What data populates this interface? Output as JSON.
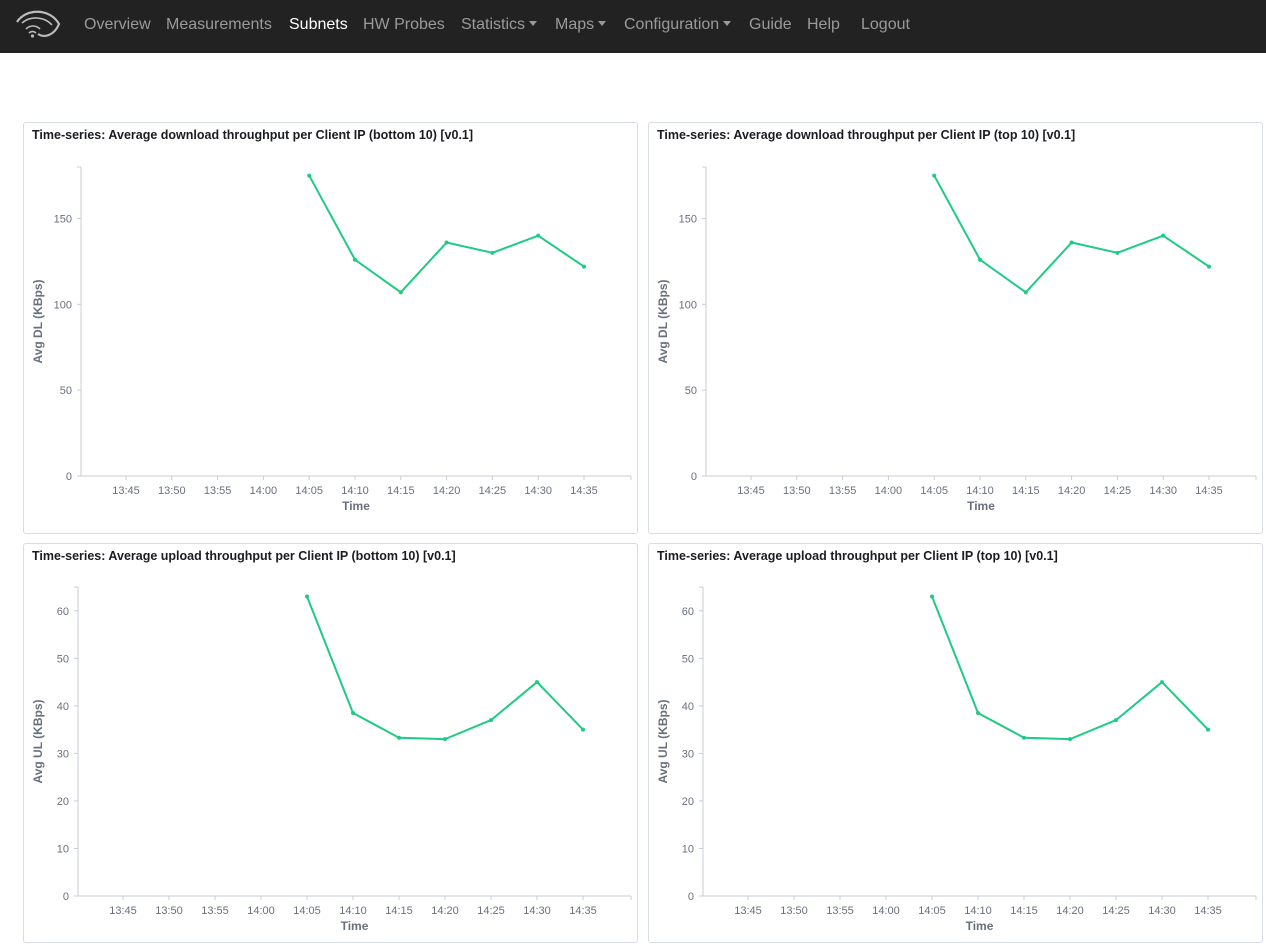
{
  "nav": {
    "items": [
      {
        "label": "Overview"
      },
      {
        "label": "Measurements"
      },
      {
        "label": "Subnets",
        "active": true
      },
      {
        "label": "HW Probes"
      },
      {
        "label": "Statistics",
        "dropdown": true
      },
      {
        "label": "Maps",
        "dropdown": true
      },
      {
        "label": "Configuration",
        "dropdown": true
      },
      {
        "label": "Guide"
      },
      {
        "label": "Help"
      },
      {
        "label": "Logout"
      }
    ]
  },
  "colors": {
    "navbar_bg": "#222222",
    "nav_text": "#9a9a9a",
    "nav_active": "#ffffff",
    "series_line": "#1ecb83",
    "axis": "#69707d",
    "panel_border": "#d8dce6"
  },
  "panels": [
    {
      "title": "Time-series: Average download throughput per Client IP (bottom 10) [v0.1]"
    },
    {
      "title": "Time-series: Average download throughput per Client IP (top 10) [v0.1]"
    },
    {
      "title": "Time-series: Average upload throughput per Client IP (bottom 10) [v0.1]"
    },
    {
      "title": "Time-series: Average upload throughput per Client IP (top 10) [v0.1]"
    }
  ],
  "chart_data": [
    {
      "type": "line",
      "title": "Time-series: Average download throughput per Client IP (bottom 10) [v0.1]",
      "xlabel": "Time",
      "ylabel": "Avg DL (KBps)",
      "x_ticks": [
        "13:45",
        "13:50",
        "13:55",
        "14:00",
        "14:05",
        "14:10",
        "14:15",
        "14:20",
        "14:25",
        "14:30",
        "14:35"
      ],
      "y_ticks": [
        0,
        50,
        100,
        150
      ],
      "ylim": [
        0,
        180
      ],
      "series": [
        {
          "x": [
            "14:05",
            "14:10",
            "14:15",
            "14:20",
            "14:25",
            "14:30",
            "14:35"
          ],
          "values": [
            175,
            126,
            107,
            136,
            130,
            140,
            122
          ]
        }
      ]
    },
    {
      "type": "line",
      "title": "Time-series: Average download throughput per Client IP (top 10) [v0.1]",
      "xlabel": "Time",
      "ylabel": "Avg DL (KBps)",
      "x_ticks": [
        "13:45",
        "13:50",
        "13:55",
        "14:00",
        "14:05",
        "14:10",
        "14:15",
        "14:20",
        "14:25",
        "14:30",
        "14:35"
      ],
      "y_ticks": [
        0,
        50,
        100,
        150
      ],
      "ylim": [
        0,
        180
      ],
      "series": [
        {
          "x": [
            "14:05",
            "14:10",
            "14:15",
            "14:20",
            "14:25",
            "14:30",
            "14:35"
          ],
          "values": [
            175,
            126,
            107,
            136,
            130,
            140,
            122
          ]
        }
      ]
    },
    {
      "type": "line",
      "title": "Time-series: Average upload throughput per Client IP (bottom 10) [v0.1]",
      "xlabel": "Time",
      "ylabel": "Avg UL (KBps)",
      "x_ticks": [
        "13:45",
        "13:50",
        "13:55",
        "14:00",
        "14:05",
        "14:10",
        "14:15",
        "14:20",
        "14:25",
        "14:30",
        "14:35"
      ],
      "y_ticks": [
        0,
        10,
        20,
        30,
        40,
        50,
        60
      ],
      "ylim": [
        0,
        65
      ],
      "series": [
        {
          "x": [
            "14:05",
            "14:10",
            "14:15",
            "14:20",
            "14:25",
            "14:30",
            "14:35"
          ],
          "values": [
            63,
            38.5,
            33.3,
            33,
            37,
            45,
            35
          ]
        }
      ]
    },
    {
      "type": "line",
      "title": "Time-series: Average upload throughput per Client IP (top 10) [v0.1]",
      "xlabel": "Time",
      "ylabel": "Avg UL (KBps)",
      "x_ticks": [
        "13:45",
        "13:50",
        "13:55",
        "14:00",
        "14:05",
        "14:10",
        "14:15",
        "14:20",
        "14:25",
        "14:30",
        "14:35"
      ],
      "y_ticks": [
        0,
        10,
        20,
        30,
        40,
        50,
        60
      ],
      "ylim": [
        0,
        65
      ],
      "series": [
        {
          "x": [
            "14:05",
            "14:10",
            "14:15",
            "14:20",
            "14:25",
            "14:30",
            "14:35"
          ],
          "values": [
            63,
            38.5,
            33.3,
            33,
            37,
            45,
            35
          ]
        }
      ]
    }
  ]
}
